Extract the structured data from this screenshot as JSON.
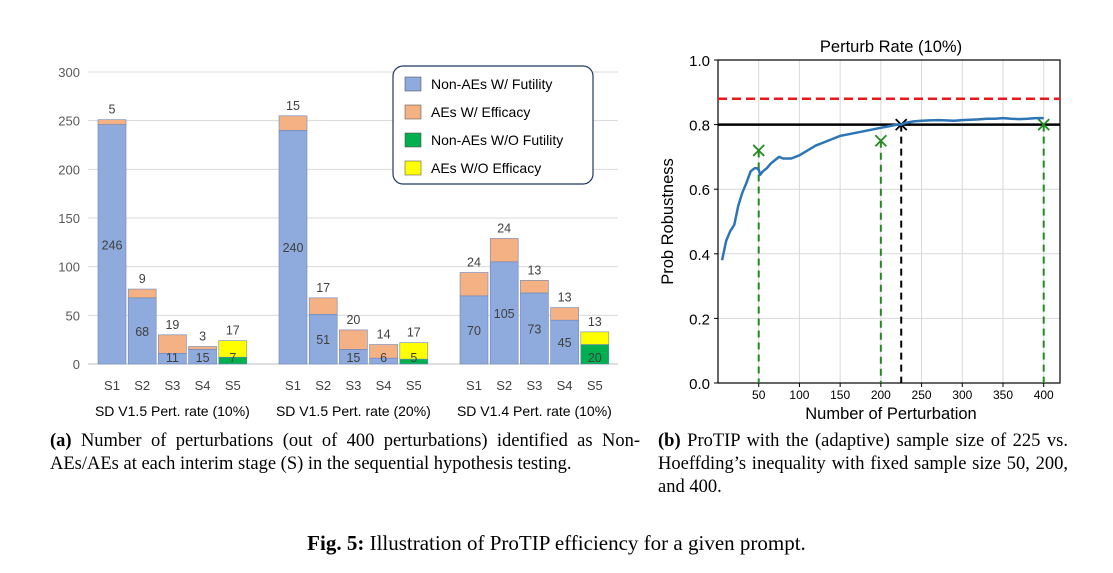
{
  "chart_data": [
    {
      "type": "bar",
      "title": "",
      "ylim": [
        0,
        300
      ],
      "yticks": [
        0,
        50,
        100,
        150,
        200,
        250,
        300
      ],
      "legend_position": "top-right",
      "colors": {
        "non_aes_futility": "#8FAADC",
        "aes_efficacy": "#F4B183",
        "non_aes_wo_futility": "#00B050",
        "aes_wo_efficacy": "#FFFF00"
      },
      "legend": [
        "Non-AEs W/ Futility",
        "AEs W/ Efficacy",
        "Non-AEs W/O Futility",
        "AEs W/O Efficacy"
      ],
      "groups": [
        {
          "label": "SD V1.5 Pert. rate (10%)",
          "stages": [
            {
              "stage": "S1",
              "non_aes_futility": 246,
              "aes_efficacy": 5,
              "non_aes_wo_futility": 0,
              "aes_wo_efficacy": 0,
              "labels": [
                "246",
                "5"
              ]
            },
            {
              "stage": "S2",
              "non_aes_futility": 68,
              "aes_efficacy": 9,
              "non_aes_wo_futility": 0,
              "aes_wo_efficacy": 0,
              "labels": [
                "68",
                "9"
              ]
            },
            {
              "stage": "S3",
              "non_aes_futility": 11,
              "aes_efficacy": 19,
              "non_aes_wo_futility": 0,
              "aes_wo_efficacy": 0,
              "labels": [
                "11",
                "19"
              ]
            },
            {
              "stage": "S4",
              "non_aes_futility": 15,
              "aes_efficacy": 3,
              "non_aes_wo_futility": 0,
              "aes_wo_efficacy": 0,
              "labels": [
                "15",
                "3"
              ]
            },
            {
              "stage": "S5",
              "non_aes_futility": 0,
              "aes_efficacy": 0,
              "non_aes_wo_futility": 7,
              "aes_wo_efficacy": 17,
              "labels": [
                "7",
                "17"
              ]
            }
          ]
        },
        {
          "label": "SD V1.5 Pert. rate (20%)",
          "stages": [
            {
              "stage": "S1",
              "non_aes_futility": 240,
              "aes_efficacy": 15,
              "non_aes_wo_futility": 0,
              "aes_wo_efficacy": 0,
              "labels": [
                "240",
                "15"
              ]
            },
            {
              "stage": "S2",
              "non_aes_futility": 51,
              "aes_efficacy": 17,
              "non_aes_wo_futility": 0,
              "aes_wo_efficacy": 0,
              "labels": [
                "51",
                "17"
              ]
            },
            {
              "stage": "S3",
              "non_aes_futility": 15,
              "aes_efficacy": 20,
              "non_aes_wo_futility": 0,
              "aes_wo_efficacy": 0,
              "labels": [
                "15",
                "20"
              ]
            },
            {
              "stage": "S4",
              "non_aes_futility": 6,
              "aes_efficacy": 14,
              "non_aes_wo_futility": 0,
              "aes_wo_efficacy": 0,
              "labels": [
                "6",
                "14"
              ]
            },
            {
              "stage": "S5",
              "non_aes_futility": 0,
              "aes_efficacy": 0,
              "non_aes_wo_futility": 5,
              "aes_wo_efficacy": 17,
              "labels": [
                "5",
                "17"
              ]
            }
          ]
        },
        {
          "label": "SD V1.4 Pert. rate (10%)",
          "stages": [
            {
              "stage": "S1",
              "non_aes_futility": 70,
              "aes_efficacy": 24,
              "non_aes_wo_futility": 0,
              "aes_wo_efficacy": 0,
              "labels": [
                "70",
                "24"
              ]
            },
            {
              "stage": "S2",
              "non_aes_futility": 105,
              "aes_efficacy": 24,
              "non_aes_wo_futility": 0,
              "aes_wo_efficacy": 0,
              "labels": [
                "105",
                "24"
              ]
            },
            {
              "stage": "S3",
              "non_aes_futility": 73,
              "aes_efficacy": 13,
              "non_aes_wo_futility": 0,
              "aes_wo_efficacy": 0,
              "labels": [
                "73",
                "13"
              ]
            },
            {
              "stage": "S4",
              "non_aes_futility": 45,
              "aes_efficacy": 13,
              "non_aes_wo_futility": 0,
              "aes_wo_efficacy": 0,
              "labels": [
                "45",
                "13"
              ]
            },
            {
              "stage": "S5",
              "non_aes_futility": 0,
              "aes_efficacy": 0,
              "non_aes_wo_futility": 20,
              "aes_wo_efficacy": 13,
              "labels": [
                "20",
                "13"
              ]
            }
          ]
        }
      ]
    },
    {
      "type": "line",
      "title": "Perturb Rate (10%)",
      "xlabel": "Number of Perturbation",
      "ylabel": "Prob Robustness",
      "xlim": [
        0,
        420
      ],
      "ylim": [
        0.0,
        1.0
      ],
      "xticks": [
        50,
        100,
        150,
        200,
        250,
        300,
        350,
        400
      ],
      "yticks": [
        "0.0",
        "0.2",
        "0.4",
        "0.6",
        "0.8",
        "1.0"
      ],
      "grid": true,
      "series": [
        {
          "color": "#2E75B6",
          "x": [
            5,
            10,
            15,
            20,
            25,
            30,
            35,
            40,
            45,
            48,
            50,
            52,
            55,
            60,
            65,
            70,
            75,
            80,
            85,
            90,
            100,
            110,
            120,
            130,
            140,
            150,
            160,
            170,
            180,
            190,
            200,
            210,
            220,
            225,
            230,
            240,
            250,
            260,
            270,
            280,
            290,
            300,
            310,
            320,
            330,
            340,
            350,
            360,
            370,
            380,
            390,
            400
          ],
          "y": [
            0.38,
            0.44,
            0.47,
            0.49,
            0.55,
            0.59,
            0.62,
            0.655,
            0.665,
            0.665,
            0.66,
            0.645,
            0.655,
            0.665,
            0.68,
            0.69,
            0.7,
            0.695,
            0.695,
            0.695,
            0.705,
            0.72,
            0.735,
            0.745,
            0.755,
            0.765,
            0.77,
            0.775,
            0.78,
            0.785,
            0.79,
            0.795,
            0.8,
            0.8,
            0.805,
            0.81,
            0.812,
            0.813,
            0.814,
            0.813,
            0.812,
            0.814,
            0.815,
            0.816,
            0.818,
            0.818,
            0.82,
            0.818,
            0.817,
            0.818,
            0.82,
            0.82
          ]
        }
      ],
      "reference_lines": {
        "red_dashed": 0.88,
        "black_solid": 0.8
      },
      "vertical_markers": [
        {
          "x": 50,
          "y": 0.72,
          "color": "#228B22",
          "marker": "x"
        },
        {
          "x": 200,
          "y": 0.75,
          "color": "#228B22",
          "marker": "x"
        },
        {
          "x": 225,
          "y": 0.8,
          "color": "#000000",
          "marker": "x"
        },
        {
          "x": 400,
          "y": 0.8,
          "color": "#228B22",
          "marker": "x"
        }
      ]
    }
  ],
  "captions": {
    "a_label": "(a)",
    "a_text": " Number of perturbations (out of 400 perturbations) identified as Non-AEs/AEs at each interim stage (S) in the sequential hypothesis testing.",
    "b_label": "(b)",
    "b_text": " ProTIP with the (adaptive) sample size of 225 vs. Hoeffding’s inequality with fixed sample size 50, 200, and 400.",
    "fig_label": "Fig. 5:",
    "fig_text": " Illustration of ProTIP efficiency for a given prompt."
  }
}
